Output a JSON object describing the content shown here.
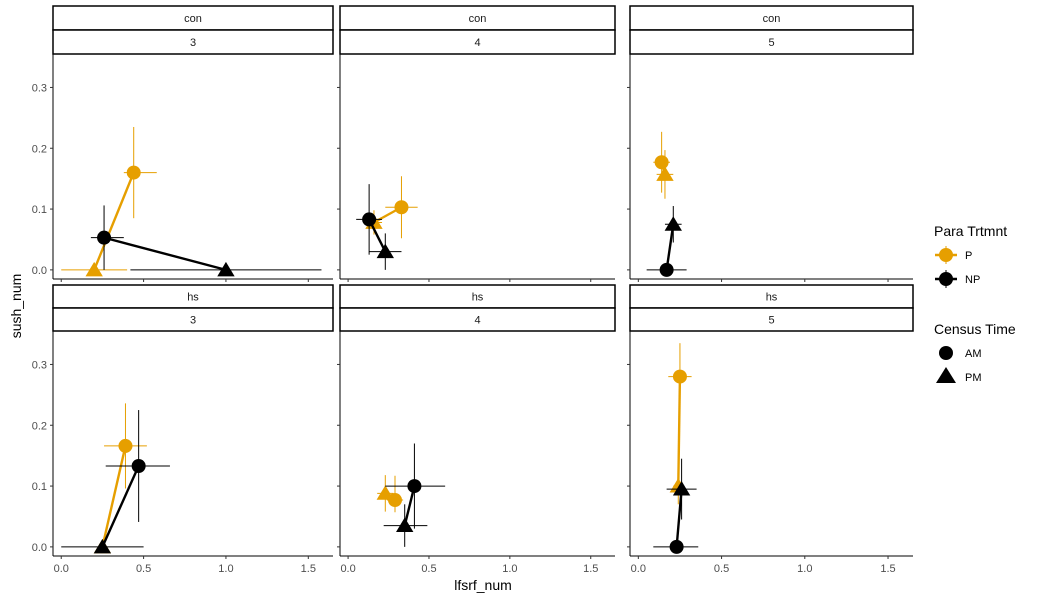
{
  "chart_data": {
    "type": "scatter",
    "xlabel": "lfsrf_num",
    "ylabel": "sush_num",
    "xlim": [
      -0.05,
      1.65
    ],
    "ylim": [
      -0.015,
      0.355
    ],
    "x_ticks": [
      0.0,
      0.5,
      1.0,
      1.5
    ],
    "x_tick_labels": [
      "0.0",
      "0.5",
      "1.0",
      "1.5"
    ],
    "y_ticks": [
      0.0,
      0.1,
      0.2,
      0.3
    ],
    "y_tick_labels": [
      "0.0",
      "0.1",
      "0.2",
      "0.3"
    ],
    "grid": false,
    "legend_placement": "right",
    "colors": {
      "P": "#E69F00",
      "NP": "#000000"
    },
    "legends": [
      {
        "title": "Para Trtmnt",
        "entries": [
          {
            "label": "P",
            "key": "P"
          },
          {
            "label": "NP",
            "key": "NP"
          }
        ]
      },
      {
        "title": "Census Time",
        "entries": [
          {
            "label": "AM",
            "key": "AM"
          },
          {
            "label": "PM",
            "key": "PM"
          }
        ]
      }
    ],
    "panels": [
      {
        "treatment": "con",
        "week": "3",
        "points": [
          {
            "group": "P",
            "time": "AM",
            "x": 0.44,
            "y": 0.16,
            "xerr": [
              0.38,
              0.58
            ],
            "yerr": [
              0.085,
              0.235
            ]
          },
          {
            "group": "P",
            "time": "PM",
            "x": 0.2,
            "y": 0.0,
            "xerr": [
              0.0,
              0.4
            ],
            "yerr": [
              0.0,
              0.0
            ]
          },
          {
            "group": "NP",
            "time": "AM",
            "x": 0.26,
            "y": 0.053,
            "xerr": [
              0.18,
              0.38
            ],
            "yerr": [
              0.0,
              0.106
            ]
          },
          {
            "group": "NP",
            "time": "PM",
            "x": 1.0,
            "y": 0.0,
            "xerr": [
              0.42,
              1.58
            ],
            "yerr": [
              0.0,
              0.0
            ]
          }
        ]
      },
      {
        "treatment": "con",
        "week": "4",
        "points": [
          {
            "group": "P",
            "time": "AM",
            "x": 0.33,
            "y": 0.103,
            "xerr": [
              0.23,
              0.43
            ],
            "yerr": [
              0.052,
              0.154
            ]
          },
          {
            "group": "P",
            "time": "PM",
            "x": 0.16,
            "y": 0.078,
            "xerr": [
              0.11,
              0.21
            ],
            "yerr": [
              0.058,
              0.098
            ]
          },
          {
            "group": "NP",
            "time": "AM",
            "x": 0.13,
            "y": 0.083,
            "xerr": [
              0.05,
              0.21
            ],
            "yerr": [
              0.025,
              0.141
            ]
          },
          {
            "group": "NP",
            "time": "PM",
            "x": 0.23,
            "y": 0.03,
            "xerr": [
              0.13,
              0.33
            ],
            "yerr": [
              0.0,
              0.06
            ]
          }
        ]
      },
      {
        "treatment": "con",
        "week": "5",
        "points": [
          {
            "group": "P",
            "time": "AM",
            "x": 0.14,
            "y": 0.177,
            "xerr": [
              0.09,
              0.19
            ],
            "yerr": [
              0.127,
              0.227
            ]
          },
          {
            "group": "P",
            "time": "PM",
            "x": 0.16,
            "y": 0.157,
            "xerr": [
              0.11,
              0.21
            ],
            "yerr": [
              0.117,
              0.197
            ]
          },
          {
            "group": "NP",
            "time": "AM",
            "x": 0.17,
            "y": 0.0,
            "xerr": [
              0.05,
              0.29
            ],
            "yerr": [
              0.0,
              0.0
            ]
          },
          {
            "group": "NP",
            "time": "PM",
            "x": 0.21,
            "y": 0.075,
            "xerr": [
              0.16,
              0.26
            ],
            "yerr": [
              0.045,
              0.105
            ]
          }
        ]
      },
      {
        "treatment": "hs",
        "week": "3",
        "points": [
          {
            "group": "P",
            "time": "AM",
            "x": 0.39,
            "y": 0.166,
            "xerr": [
              0.26,
              0.52
            ],
            "yerr": [
              0.096,
              0.236
            ]
          },
          {
            "group": "P",
            "time": "PM",
            "x": 0.25,
            "y": 0.0,
            "xerr": [
              0.25,
              0.25
            ],
            "yerr": [
              0.0,
              0.0
            ]
          },
          {
            "group": "NP",
            "time": "AM",
            "x": 0.47,
            "y": 0.133,
            "xerr": [
              0.27,
              0.66
            ],
            "yerr": [
              0.041,
              0.225
            ]
          },
          {
            "group": "NP",
            "time": "PM",
            "x": 0.25,
            "y": 0.0,
            "xerr": [
              0.0,
              0.5
            ],
            "yerr": [
              0.0,
              0.0
            ]
          }
        ]
      },
      {
        "treatment": "hs",
        "week": "4",
        "points": [
          {
            "group": "P",
            "time": "AM",
            "x": 0.29,
            "y": 0.077,
            "xerr": [
              0.24,
              0.34
            ],
            "yerr": [
              0.057,
              0.117
            ]
          },
          {
            "group": "P",
            "time": "PM",
            "x": 0.23,
            "y": 0.088,
            "xerr": [
              0.18,
              0.28
            ],
            "yerr": [
              0.058,
              0.118
            ]
          },
          {
            "group": "NP",
            "time": "AM",
            "x": 0.41,
            "y": 0.1,
            "xerr": [
              0.23,
              0.6
            ],
            "yerr": [
              0.03,
              0.17
            ]
          },
          {
            "group": "NP",
            "time": "PM",
            "x": 0.35,
            "y": 0.035,
            "xerr": [
              0.22,
              0.49
            ],
            "yerr": [
              0.0,
              0.07
            ]
          }
        ]
      },
      {
        "treatment": "hs",
        "week": "5",
        "points": [
          {
            "group": "P",
            "time": "AM",
            "x": 0.25,
            "y": 0.28,
            "xerr": [
              0.18,
              0.32
            ],
            "yerr": [
              0.225,
              0.335
            ]
          },
          {
            "group": "P",
            "time": "PM",
            "x": 0.24,
            "y": 0.1,
            "xerr": [
              0.21,
              0.27
            ],
            "yerr": [
              0.07,
              0.13
            ]
          },
          {
            "group": "NP",
            "time": "AM",
            "x": 0.23,
            "y": 0.0,
            "xerr": [
              0.09,
              0.36
            ],
            "yerr": [
              0.0,
              0.0
            ]
          },
          {
            "group": "NP",
            "time": "PM",
            "x": 0.26,
            "y": 0.095,
            "xerr": [
              0.17,
              0.35
            ],
            "yerr": [
              0.045,
              0.145
            ]
          }
        ]
      }
    ]
  }
}
